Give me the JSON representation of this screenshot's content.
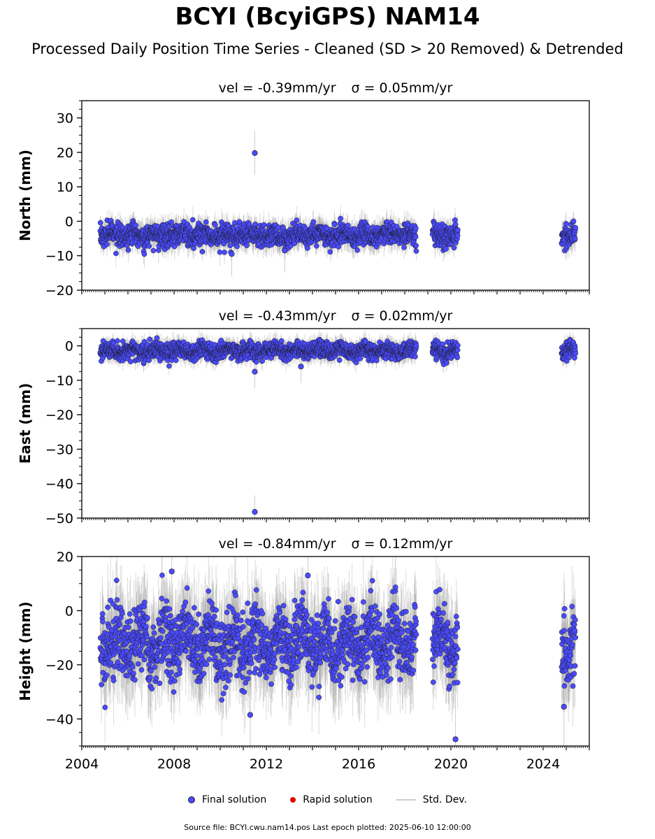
{
  "title": "BCYI (BcyiGPS) NAM14",
  "subtitle": "Processed Daily Position Time Series - Cleaned (SD > 20 Removed) & Detrended",
  "source_note": "Source file: BCYI.cwu.nam14.pos  Last epoch plotted: 2025-06-10 12:00:00",
  "colors": {
    "final": "#4a4aff",
    "rapid": "#e00000",
    "stddev": "#cccccc"
  },
  "chart_data": {
    "type": "scatter",
    "x_range": [
      2004,
      2026
    ],
    "x_ticks": [
      2004,
      2008,
      2012,
      2016,
      2020,
      2024
    ],
    "x_tick_labels": [
      "2004",
      "2008",
      "2012",
      "2016",
      "2020",
      "2024"
    ],
    "legend": {
      "placement": "bottom-center",
      "entries": [
        "Final solution",
        "Rapid solution",
        "Std. Dev."
      ]
    },
    "data_segments": [
      [
        2004.8,
        2018.5
      ],
      [
        2019.2,
        2020.3
      ],
      [
        2024.8,
        2025.4
      ]
    ],
    "panels": [
      {
        "key": "north",
        "ylabel": "North (mm)",
        "vel_label": "vel = -0.39mm/yr",
        "sigma_label": "σ = 0.05mm/yr",
        "ylim": [
          -20,
          35
        ],
        "yticks": [
          -20,
          -10,
          0,
          10,
          20,
          30
        ],
        "ytick_labels": [
          "−20",
          "−10",
          "0",
          "10",
          "20",
          "30"
        ],
        "baseline": -4,
        "scatter_sd": 1.6,
        "outliers": [
          [
            2011.5,
            19.8
          ],
          [
            2012.8,
            -8.5
          ],
          [
            2010.5,
            -9.5
          ]
        ],
        "series": [
          {
            "name": "Final solution",
            "segments": [
              [
                2004.8,
                2018.5
              ],
              [
                2019.2,
                2020.3
              ],
              [
                2024.8,
                2025.4
              ]
            ]
          }
        ]
      },
      {
        "key": "east",
        "ylabel": "East (mm)",
        "vel_label": "vel = -0.43mm/yr",
        "sigma_label": "σ = 0.02mm/yr",
        "ylim": [
          -50,
          5
        ],
        "yticks": [
          -50,
          -40,
          -30,
          -20,
          -10,
          0
        ],
        "ytick_labels": [
          "−50",
          "−40",
          "−30",
          "−20",
          "−10",
          "0"
        ],
        "baseline": -1.5,
        "scatter_sd": 1.2,
        "outliers": [
          [
            2011.5,
            -48.2
          ],
          [
            2011.5,
            -7.5
          ],
          [
            2013.5,
            -6.0
          ]
        ],
        "series": [
          {
            "name": "Final solution",
            "segments": [
              [
                2004.8,
                2018.5
              ],
              [
                2019.2,
                2020.3
              ],
              [
                2024.8,
                2025.4
              ]
            ]
          }
        ]
      },
      {
        "key": "height",
        "ylabel": "Height (mm)",
        "vel_label": "vel = -0.84mm/yr",
        "sigma_label": "σ = 0.12mm/yr",
        "ylim": [
          -50,
          20
        ],
        "yticks": [
          -40,
          -20,
          0,
          20
        ],
        "ytick_labels": [
          "−40",
          "−20",
          "0",
          "20"
        ],
        "baseline": -12,
        "scatter_sd": 6.5,
        "outliers": [
          [
            2011.3,
            -38.5
          ],
          [
            2020.2,
            -47.5
          ],
          [
            2024.9,
            -35.5
          ],
          [
            2007.9,
            14.5
          ],
          [
            2013.8,
            13.0
          ]
        ],
        "series": [
          {
            "name": "Final solution",
            "segments": [
              [
                2004.8,
                2018.5
              ],
              [
                2019.2,
                2020.3
              ],
              [
                2024.8,
                2025.4
              ]
            ]
          }
        ]
      }
    ]
  }
}
